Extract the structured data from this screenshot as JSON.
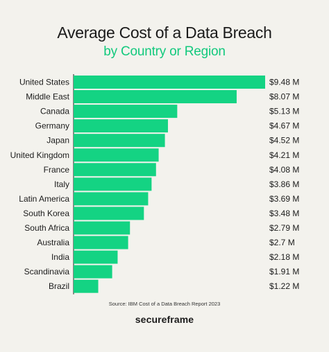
{
  "chart_data": {
    "type": "bar",
    "orientation": "horizontal",
    "title": "Average Cost of a Data Breach",
    "subtitle": "by Country or Region",
    "categories": [
      "United States",
      "Middle East",
      "Canada",
      "Germany",
      "Japan",
      "United Kingdom",
      "France",
      "Italy",
      "Latin America",
      "South Korea",
      "South Africa",
      "Australia",
      "India",
      "Scandinavia",
      "Brazil"
    ],
    "values": [
      9.48,
      8.07,
      5.13,
      4.67,
      4.52,
      4.21,
      4.08,
      3.86,
      3.69,
      3.48,
      2.79,
      2.7,
      2.18,
      1.91,
      1.22
    ],
    "value_labels": [
      "$9.48 M",
      "$8.07 M",
      "$5.13 M",
      "$4.67 M",
      "$4.52 M",
      "$4.21 M",
      "$4.08 M",
      "$3.86 M",
      "$3.69 M",
      "$3.48 M",
      "$2.79 M",
      "$2.7 M",
      "$2.18 M",
      "$1.91 M",
      "$1.22 M"
    ],
    "xlim": [
      0,
      9.48
    ],
    "bar_color": "#14d383",
    "grid": false,
    "xlabel": "",
    "ylabel": ""
  },
  "source": "Source: IBM Cost of a Data Breach Report 2023",
  "brand": "secureframe",
  "colors": {
    "background": "#f3f2ed",
    "accent": "#12c97d",
    "text": "#1b1b1b"
  }
}
